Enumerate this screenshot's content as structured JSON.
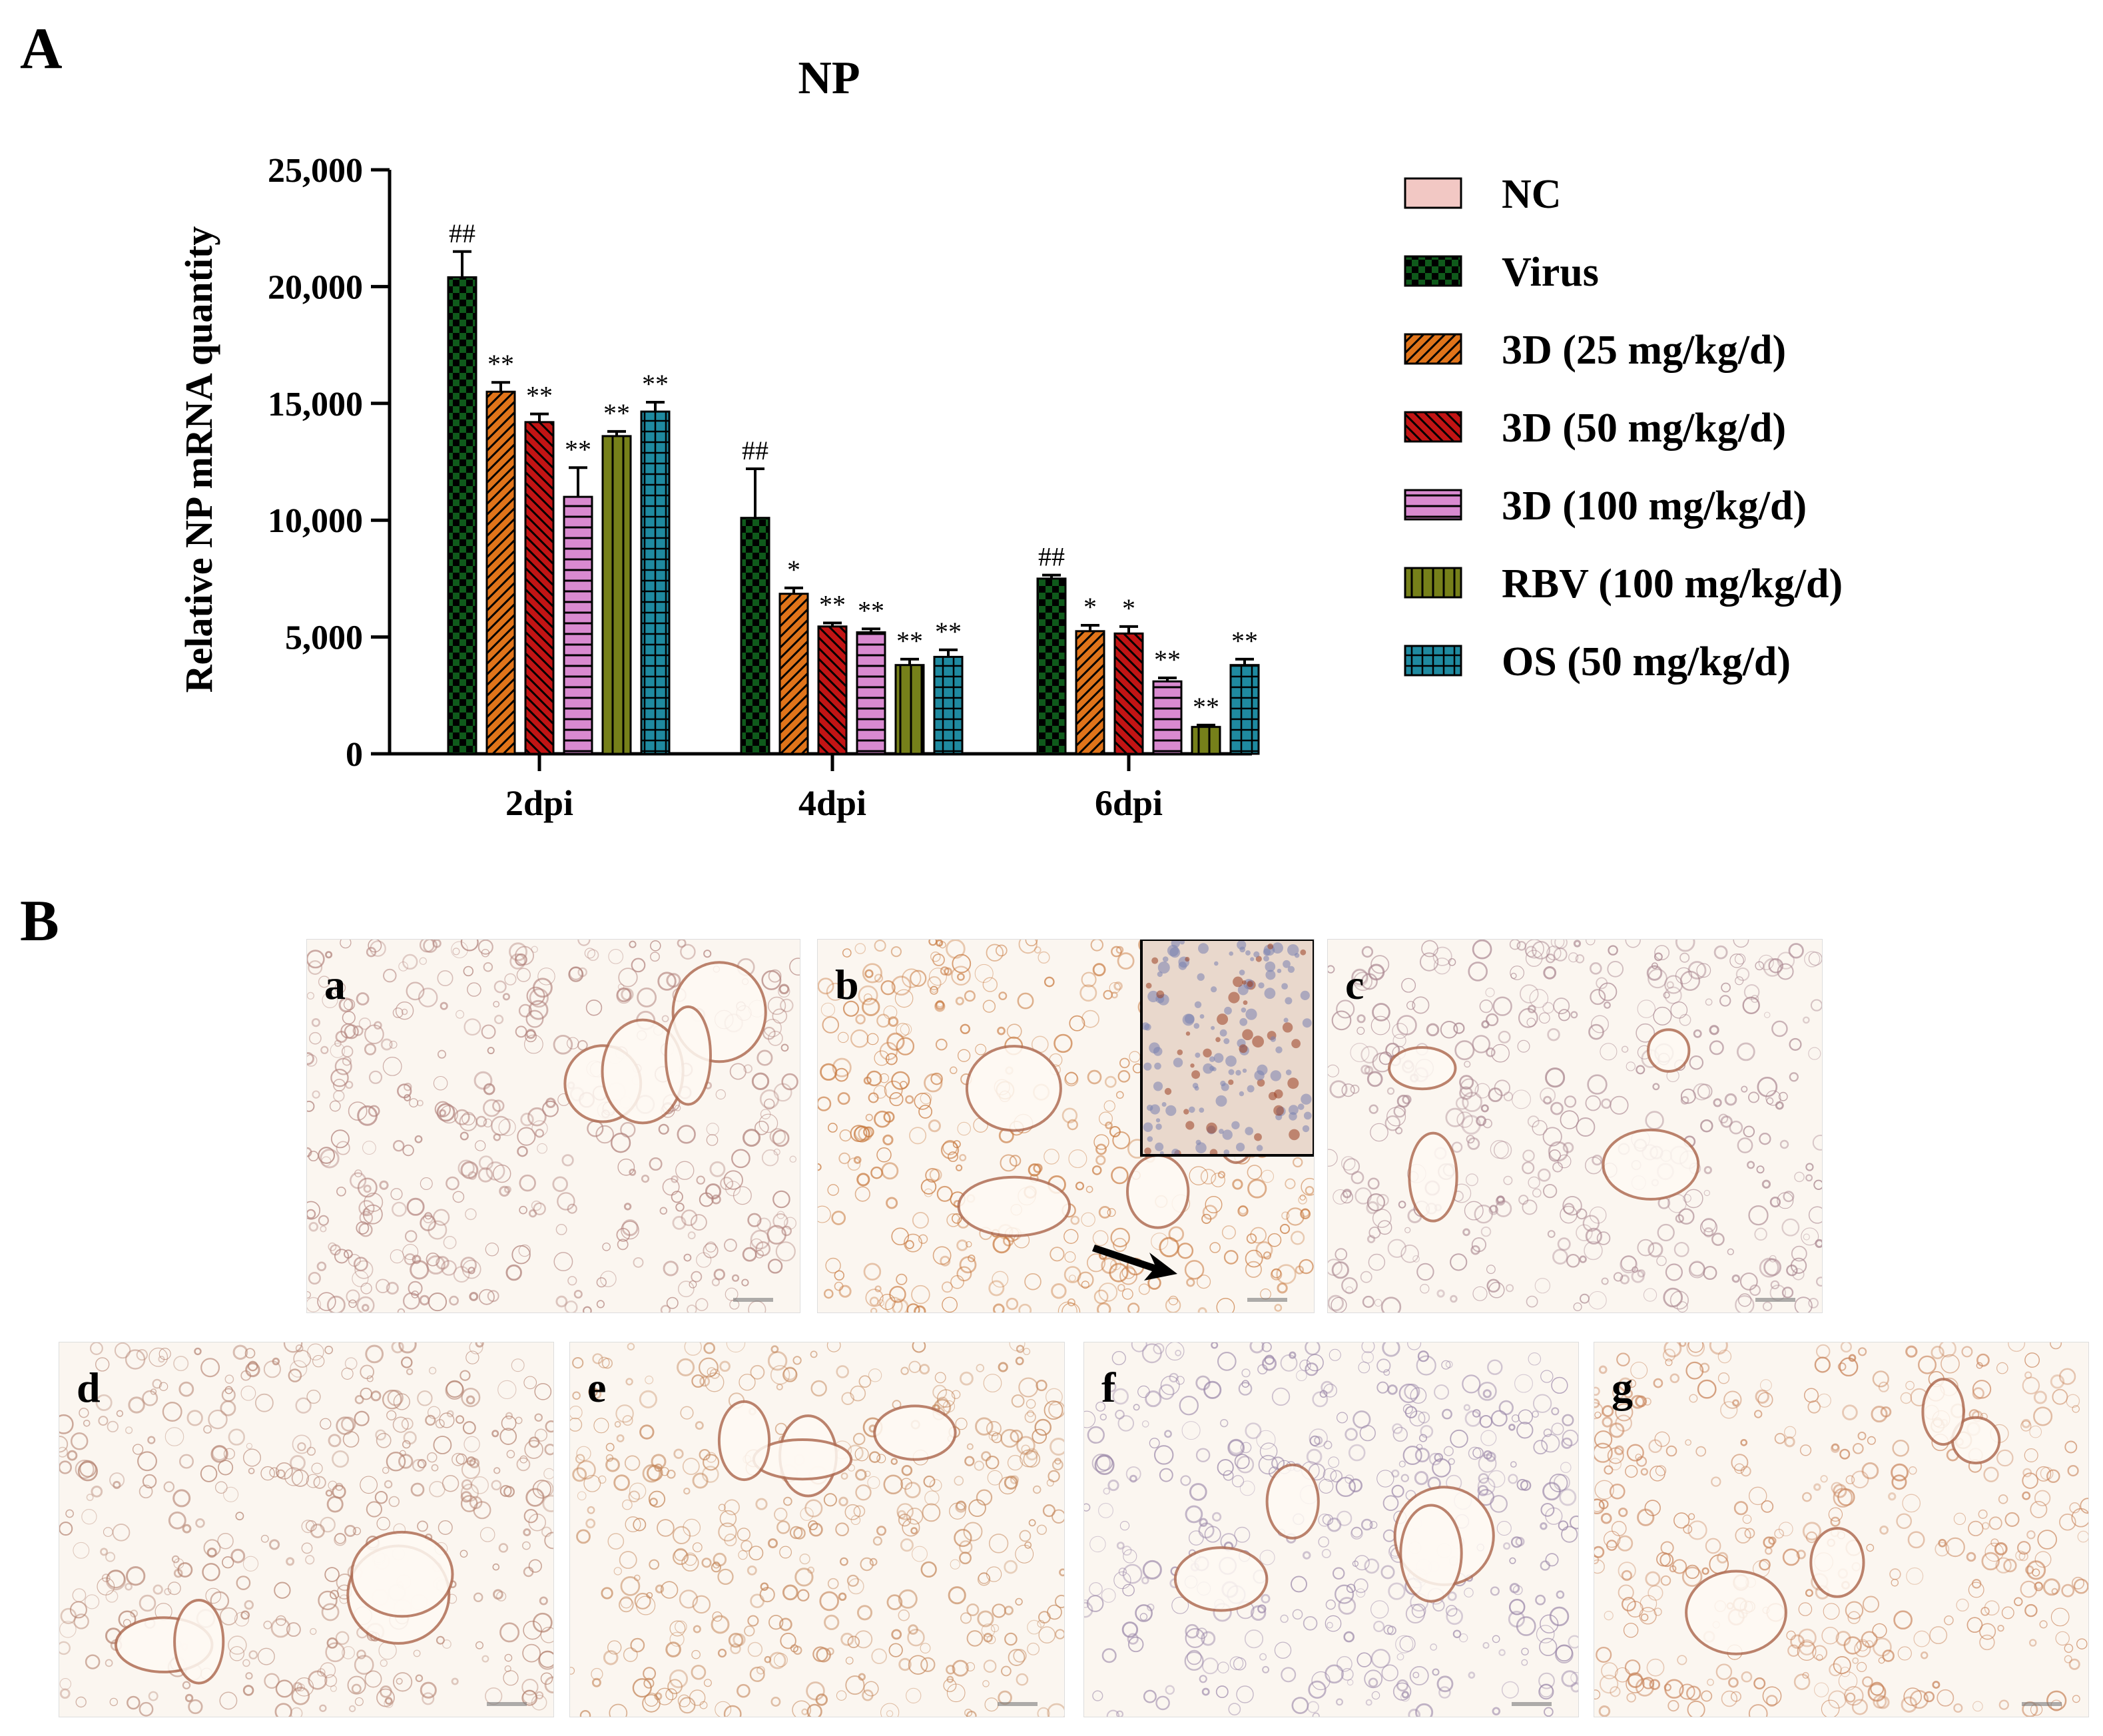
{
  "panel_labels": {
    "A": "A",
    "B": "B"
  },
  "colors": {
    "NC": "#f2c8c4",
    "Virus": "#0f5a1b",
    "3D (25 mg/kg/d)": "#e0741a",
    "3D (50 mg/kg/d)": "#c21414",
    "3D (100 mg/kg/d)": "#d98ad0",
    "RBV (100 mg/kg/d)": "#76801a",
    "OS (50 mg/kg/d)": "#1f8aa0"
  },
  "patterns": {
    "NC": "solid",
    "Virus": "checker",
    "3D (25 mg/kg/d)": "diagonal-up",
    "3D (50 mg/kg/d)": "diagonal-down",
    "3D (100 mg/kg/d)": "horizontal-lines",
    "RBV (100 mg/kg/d)": "vertical-lines",
    "OS (50 mg/kg/d)": "grid"
  },
  "chart_data": {
    "type": "bar",
    "title": "NP",
    "ylabel": "Relative NP mRNA quantity",
    "xlabel": "",
    "categories": [
      "2dpi",
      "4dpi",
      "6dpi"
    ],
    "ylim": [
      0,
      25000
    ],
    "yticks": [
      0,
      5000,
      10000,
      15000,
      20000,
      25000
    ],
    "ytick_labels": [
      "0",
      "5,000",
      "10,000",
      "15,000",
      "20,000",
      "25,000"
    ],
    "legend_position": "right",
    "series": [
      {
        "name": "NC",
        "values": [
          0,
          0,
          0
        ],
        "errors": [
          0,
          0,
          0
        ],
        "annotations": [
          "",
          "",
          ""
        ]
      },
      {
        "name": "Virus",
        "values": [
          20400,
          10100,
          7500
        ],
        "errors": [
          1100,
          2100,
          150
        ],
        "annotations": [
          "##",
          "##",
          "##"
        ]
      },
      {
        "name": "3D (25 mg/kg/d)",
        "values": [
          15500,
          6850,
          5250
        ],
        "errors": [
          400,
          250,
          250
        ],
        "annotations": [
          "**",
          "*",
          "*"
        ]
      },
      {
        "name": "3D (50 mg/kg/d)",
        "values": [
          14200,
          5450,
          5150
        ],
        "errors": [
          350,
          150,
          300
        ],
        "annotations": [
          "**",
          "**",
          "*"
        ]
      },
      {
        "name": "3D (100 mg/kg/d)",
        "values": [
          11000,
          5200,
          3100
        ],
        "errors": [
          1250,
          150,
          150
        ],
        "annotations": [
          "**",
          "**",
          "**"
        ]
      },
      {
        "name": "RBV (100 mg/kg/d)",
        "values": [
          13600,
          3800,
          1150
        ],
        "errors": [
          200,
          250,
          80
        ],
        "annotations": [
          "**",
          "**",
          "**"
        ]
      },
      {
        "name": "OS (50 mg/kg/d)",
        "values": [
          14650,
          4150,
          3800
        ],
        "errors": [
          400,
          300,
          250
        ],
        "annotations": [
          "**",
          "**",
          "**"
        ]
      }
    ]
  },
  "micrographs": [
    {
      "label": "a"
    },
    {
      "label": "b"
    },
    {
      "label": "c"
    },
    {
      "label": "d"
    },
    {
      "label": "e"
    },
    {
      "label": "f"
    },
    {
      "label": "g"
    }
  ]
}
